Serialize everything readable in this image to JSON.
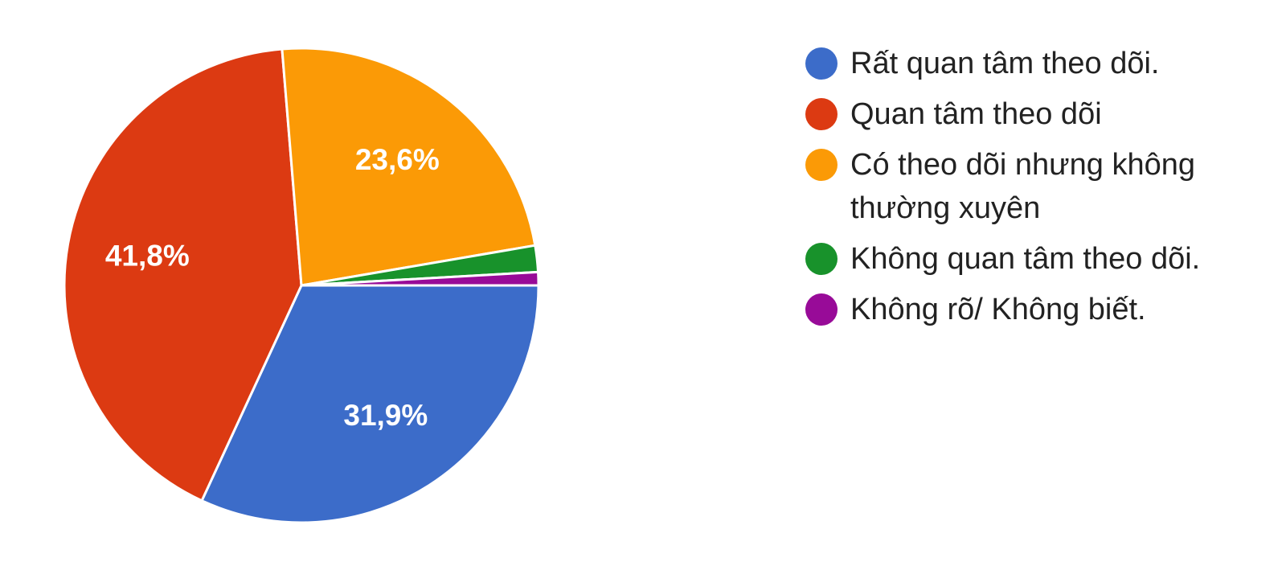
{
  "chart_data": {
    "type": "pie",
    "series": [
      {
        "name": "Rất quan tâm theo dõi.",
        "color": "#3c6cc9"
      },
      {
        "name": "Quan tâm theo dõi",
        "color": "#dc3a12"
      },
      {
        "name": "Có theo dõi nhưng không thường xuyên",
        "color": "#fb9a06"
      },
      {
        "name": "Không quan tâm theo dõi.",
        "color": "#18922b"
      },
      {
        "name": "Không rõ/ Không biết.",
        "color": "#980b98"
      }
    ],
    "values": [
      31.9,
      41.8,
      23.6,
      1.8,
      0.9
    ],
    "value_labels": [
      "31,9%",
      "41,8%",
      "23,6%",
      null,
      null
    ]
  }
}
